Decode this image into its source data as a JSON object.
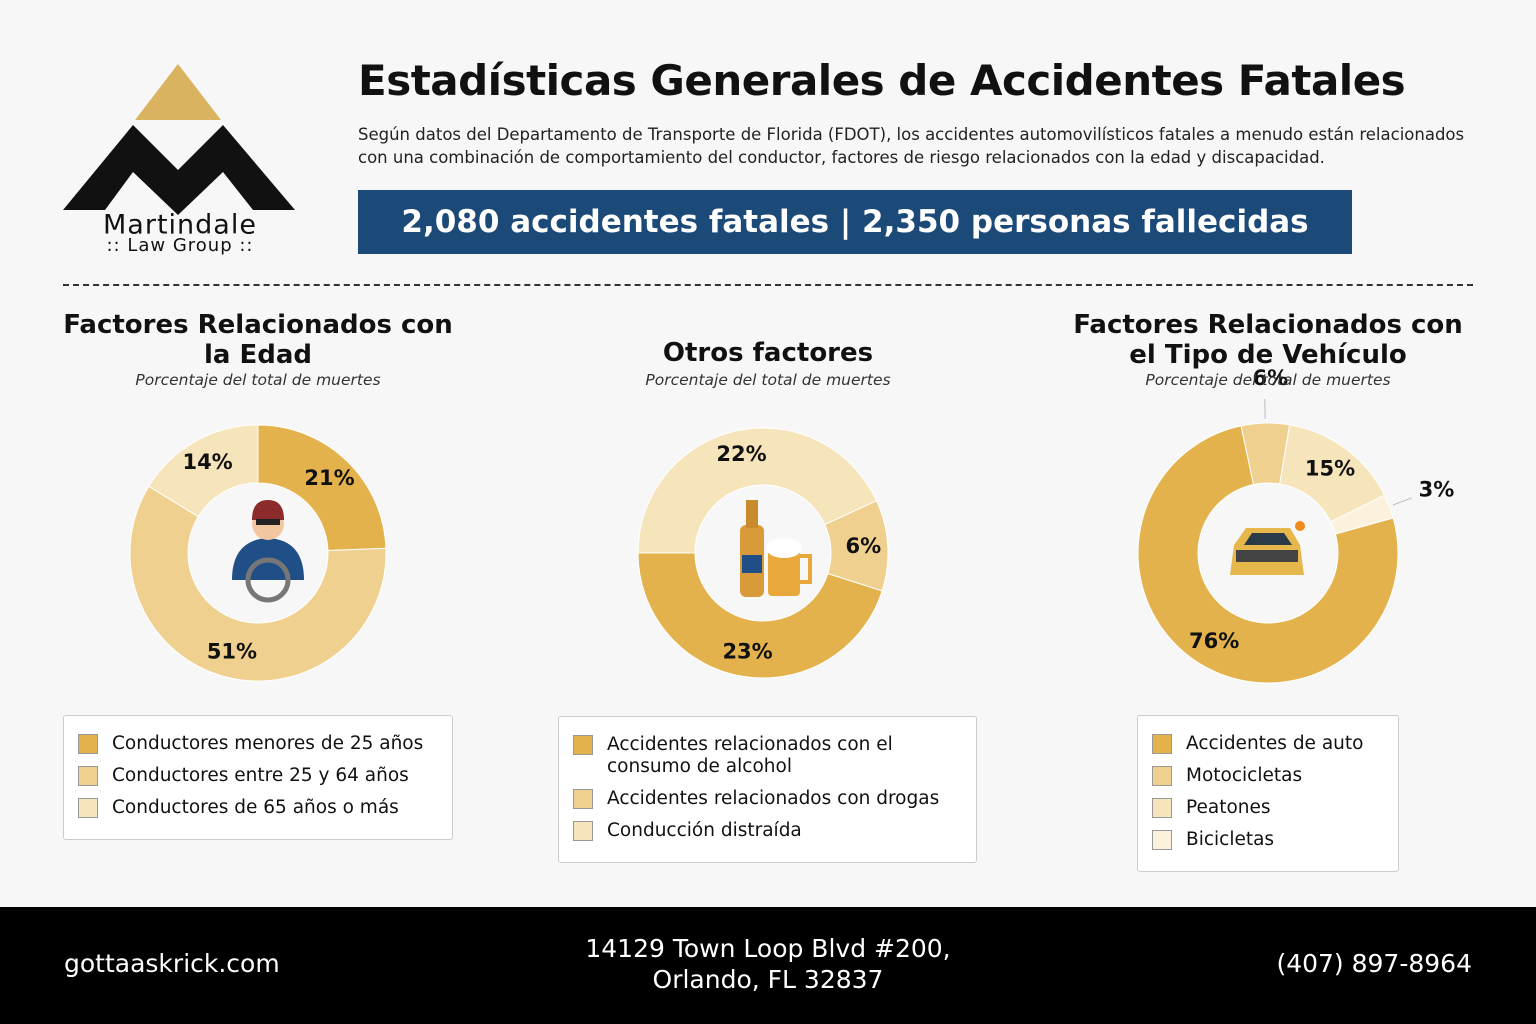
{
  "logo": {
    "name": "Martindale",
    "sub": ":: Law Group ::"
  },
  "header": {
    "title": "Estadísticas Generales de Accidentes Fatales",
    "description": "Según datos del Departamento de Transporte de Florida (FDOT), los accidentes automovilísticos fatales a menudo están relacionados con una combinación de comportamiento del conductor, factores de riesgo relacionados con la edad y discapacidad.",
    "banner": "2,080 accidentes fatales | 2,350 personas fallecidas"
  },
  "chart_data": [
    {
      "type": "donut",
      "title": "Factores Relacionados con la Edad",
      "subtitle": "Porcentaje del total de muertes",
      "categories": [
        "Conductores menores de 25 años",
        "Conductores entre 25 y 64 años",
        "Conductores de 65 años o más"
      ],
      "values": [
        21,
        51,
        14
      ],
      "value_labels": [
        "21%",
        "51%",
        "14%"
      ],
      "colors": [
        "#e3b24c",
        "#f0d08e",
        "#f6e4bb"
      ]
    },
    {
      "type": "donut",
      "title": "Otros factores",
      "subtitle": "Porcentaje del total de muertes",
      "categories": [
        "Accidentes relacionados con el consumo de alcohol",
        "Accidentes relacionados con drogas",
        "Conducción distraída"
      ],
      "values": [
        23,
        6,
        22
      ],
      "value_labels": [
        "23%",
        "6%",
        "22%"
      ],
      "colors": [
        "#e3b24c",
        "#f0d08e",
        "#f6e4bb"
      ]
    },
    {
      "type": "donut",
      "title": "Factores Relacionados con el Tipo de Vehículo",
      "subtitle": "Porcentaje del total de muertes",
      "categories": [
        "Accidentes de auto",
        "Motocicletas",
        "Peatones",
        "Bicicletas"
      ],
      "values": [
        76,
        6,
        15,
        3
      ],
      "value_labels": [
        "76%",
        "6%",
        "15%",
        "3%"
      ],
      "colors": [
        "#e3b24c",
        "#f0d08e",
        "#f6e4bb",
        "#fbf1dc"
      ]
    }
  ],
  "footer": {
    "website": "gottaaskrick.com",
    "address": "14129 Town Loop Blvd #200, Orlando, FL 32837",
    "phone": "(407) 897-8964"
  }
}
